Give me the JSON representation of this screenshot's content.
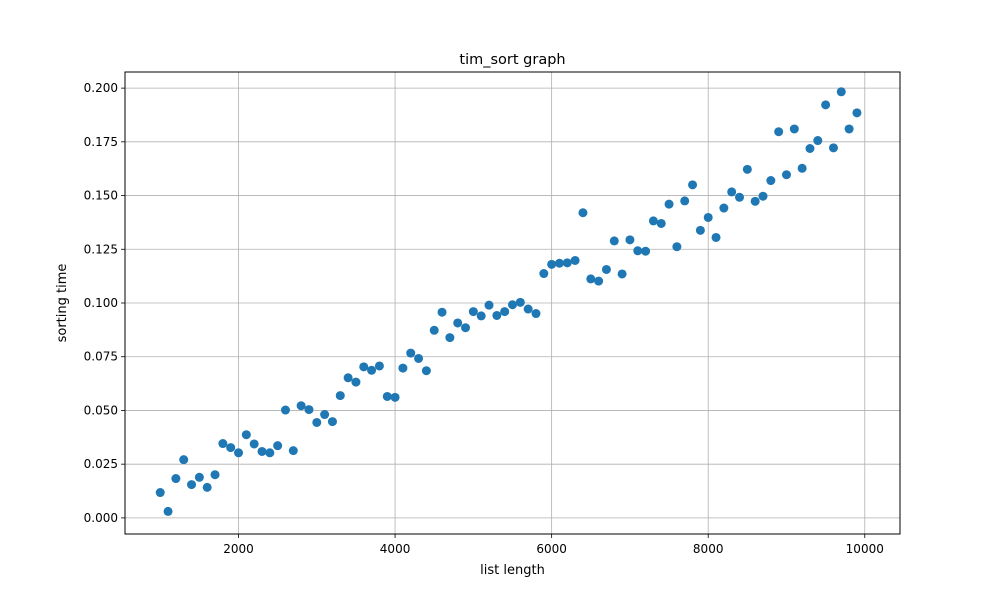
{
  "chart_data": {
    "type": "scatter",
    "title": "tim_sort graph",
    "xlabel": "list length",
    "ylabel": "sorting time",
    "xlim": [
      550,
      10450
    ],
    "ylim": [
      -0.0075,
      0.2075
    ],
    "xticks": [
      2000,
      4000,
      6000,
      8000,
      10000
    ],
    "xtick_labels": [
      "2000",
      "4000",
      "6000",
      "8000",
      "10000"
    ],
    "yticks": [
      0.0,
      0.025,
      0.05,
      0.075,
      0.1,
      0.125,
      0.15,
      0.175,
      0.2
    ],
    "ytick_labels": [
      "0.000",
      "0.025",
      "0.050",
      "0.075",
      "0.100",
      "0.125",
      "0.150",
      "0.175",
      "0.200"
    ],
    "grid": true,
    "marker_color": "#1f77b4",
    "x": [
      1000,
      1100,
      1200,
      1300,
      1400,
      1500,
      1600,
      1700,
      1800,
      1900,
      2000,
      2100,
      2200,
      2300,
      2400,
      2500,
      2600,
      2700,
      2800,
      2900,
      3000,
      3100,
      3200,
      3300,
      3400,
      3500,
      3600,
      3700,
      3800,
      3900,
      4000,
      4100,
      4200,
      4300,
      4400,
      4500,
      4600,
      4700,
      4800,
      4900,
      5000,
      5100,
      5200,
      5300,
      5400,
      5500,
      5600,
      5700,
      5800,
      5900,
      6000,
      6100,
      6200,
      6300,
      6400,
      6500,
      6600,
      6700,
      6800,
      6900,
      7000,
      7100,
      7200,
      7300,
      7400,
      7500,
      7600,
      7700,
      7800,
      7900,
      8000,
      8100,
      8200,
      8300,
      8400,
      8500,
      8600,
      8700,
      8800,
      8900,
      9000,
      9100,
      9200,
      9300,
      9400,
      9500,
      9600,
      9700,
      9800,
      9900
    ],
    "y": [
      0.0118,
      0.003,
      0.0183,
      0.0271,
      0.0155,
      0.0189,
      0.0142,
      0.0201,
      0.0346,
      0.0327,
      0.0303,
      0.0387,
      0.0344,
      0.0309,
      0.0303,
      0.0336,
      0.0502,
      0.0313,
      0.0522,
      0.0504,
      0.0444,
      0.0481,
      0.0448,
      0.0569,
      0.0652,
      0.0632,
      0.0703,
      0.0687,
      0.0707,
      0.0565,
      0.0561,
      0.0697,
      0.0767,
      0.0742,
      0.0685,
      0.0873,
      0.0957,
      0.0839,
      0.0907,
      0.0885,
      0.096,
      0.094,
      0.099,
      0.0942,
      0.096,
      0.0992,
      0.1003,
      0.0972,
      0.0951,
      0.1137,
      0.118,
      0.1185,
      0.1187,
      0.1198,
      0.142,
      0.1112,
      0.1102,
      0.1156,
      0.1289,
      0.1135,
      0.1294,
      0.1243,
      0.1241,
      0.1382,
      0.137,
      0.146,
      0.1262,
      0.1475,
      0.155,
      0.1338,
      0.1398,
      0.1305,
      0.1442,
      0.1517,
      0.1492,
      0.1622,
      0.1473,
      0.1497,
      0.157,
      0.1797,
      0.1597,
      0.181,
      0.1627,
      0.1719,
      0.1756,
      0.1922,
      0.1722,
      0.1983,
      0.181,
      0.1885
    ]
  }
}
